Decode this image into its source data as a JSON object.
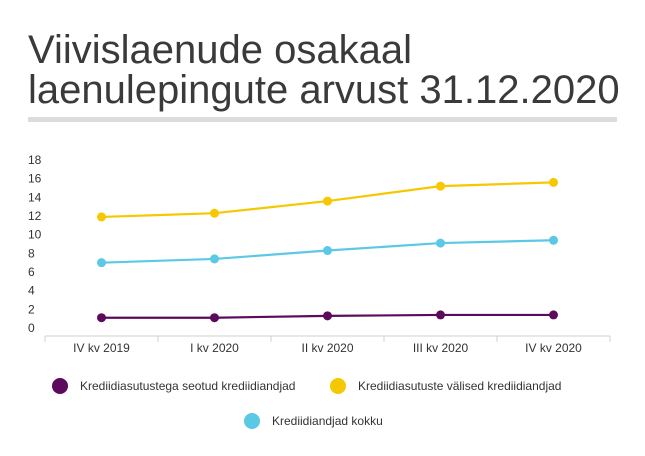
{
  "title_line1": "Viivislaenude osakaal",
  "title_line2": "laenulepingute arvust 31.12.2020",
  "chart_data": {
    "type": "line",
    "title": "Viivislaenude osakaal laenulepingute arvust 31.12.2020",
    "categories": [
      "IV kv 2019",
      "I kv 2020",
      "II kv 2020",
      "III kv 2020",
      "IV kv 2020"
    ],
    "ylim": [
      0,
      18
    ],
    "yticks": [
      0,
      2,
      4,
      6,
      8,
      10,
      12,
      14,
      16,
      18
    ],
    "grid": false,
    "legend_position": "bottom",
    "series": [
      {
        "name": "Krediidiasutustega seotud krediidiandjad",
        "color": "#5c0a5c",
        "values": [
          1.1,
          1.1,
          1.3,
          1.4,
          1.4
        ]
      },
      {
        "name": "Krediidiasutuste välised krediidiandjad",
        "color": "#f5c800",
        "values": [
          11.9,
          12.3,
          13.6,
          15.2,
          15.6
        ]
      },
      {
        "name": "Krediidiandjad kokku",
        "color": "#5bc8e6",
        "values": [
          7.0,
          7.4,
          8.3,
          9.1,
          9.4
        ]
      }
    ]
  }
}
